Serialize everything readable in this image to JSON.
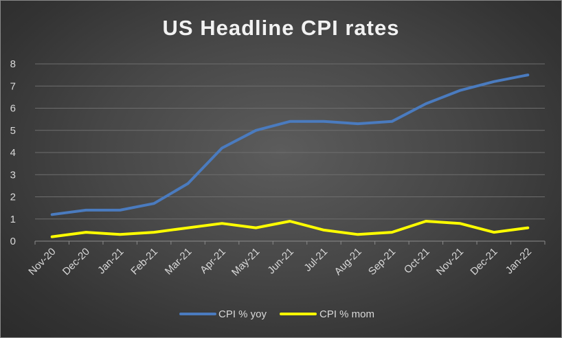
{
  "chart_data": {
    "type": "line",
    "title": "US Headline CPI rates",
    "xlabel": "",
    "ylabel": "",
    "categories": [
      "Nov-20",
      "Dec-20",
      "Jan-21",
      "Feb-21",
      "Mar-21",
      "Apr-21",
      "May-21",
      "Jun-21",
      "Jul-21",
      "Aug-21",
      "Sep-21",
      "Oct-21",
      "Nov-21",
      "Dec-21",
      "Jan-22"
    ],
    "ylim": [
      0,
      8
    ],
    "yticks": [
      "0",
      "1",
      "2",
      "3",
      "4",
      "5",
      "6",
      "7",
      "8"
    ],
    "grid": true,
    "legend_position": "bottom",
    "series": [
      {
        "name": "CPI % yoy",
        "color": "#4a7bbf",
        "values": [
          1.2,
          1.4,
          1.4,
          1.7,
          2.6,
          4.2,
          5.0,
          5.4,
          5.4,
          5.3,
          5.4,
          6.2,
          6.8,
          7.2,
          7.5
        ]
      },
      {
        "name": "CPI % mom",
        "color": "#ffff00",
        "values": [
          0.2,
          0.4,
          0.3,
          0.4,
          0.6,
          0.8,
          0.6,
          0.9,
          0.5,
          0.3,
          0.4,
          0.9,
          0.8,
          0.4,
          0.6
        ]
      }
    ]
  }
}
